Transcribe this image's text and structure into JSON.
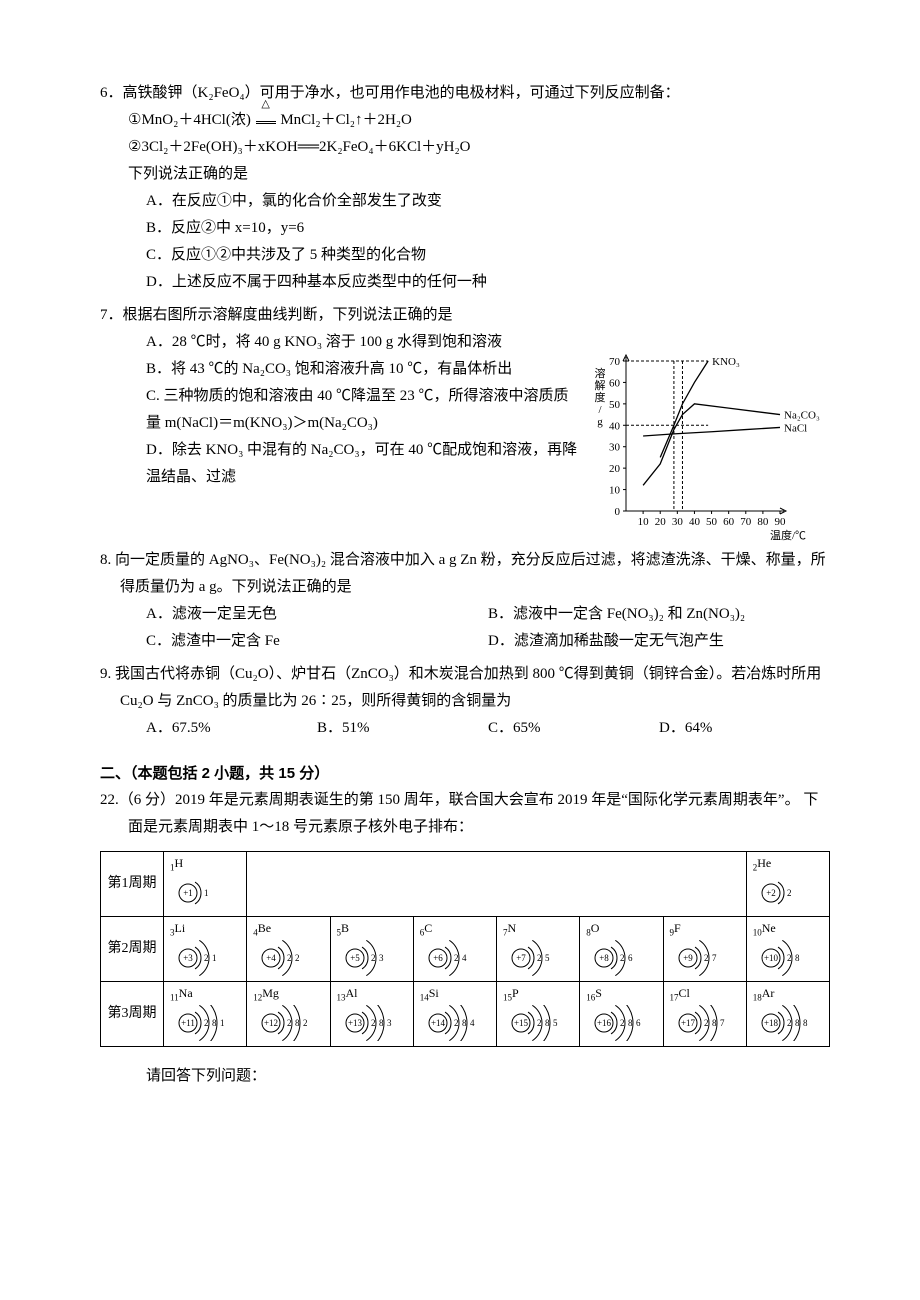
{
  "q6": {
    "stem": "6．高铁酸钾（K₂FeO₄）可用于净水，也可用作电池的电极材料，可通过下列反应制备：",
    "eq1_lhs": "①MnO₂＋4HCl(浓)",
    "eq1_rhs": "MnCl₂＋Cl₂↑＋2H₂O",
    "eq2": "②3Cl₂＋2Fe(OH)₃＋xKOH══2K₂FeO₄＋6KCl＋yH₂O",
    "prompt": "下列说法正确的是",
    "A": "A．在反应①中，氯的化合价全部发生了改变",
    "B": "B．反应②中 x=10，y=6",
    "C": "C．反应①②中共涉及了 5 种类型的化合物",
    "D": "D．上述反应不属于四种基本反应类型中的任何一种"
  },
  "q7": {
    "stem": "7．根据右图所示溶解度曲线判断，下列说法正确的是",
    "A": "A．28 ℃时，将 40 g KNO₃ 溶于 100 g 水得到饱和溶液",
    "B": "B．将 43 ℃的 Na₂CO₃ 饱和溶液升高 10 ℃，有晶体析出",
    "C": "C. 三种物质的饱和溶液由 40 ℃降温至 23 ℃，所得溶液中溶质质量 m(NaCl)＝m(KNO₃)＞m(Na₂CO₃)",
    "D": "D．除去 KNO₃ 中混有的 Na₂CO₃，可在 40 ℃配成饱和溶液，再降温结晶、过滤"
  },
  "chart": {
    "x_label": "温度/℃",
    "y_label": "溶解度/g",
    "x_ticks": [
      10,
      20,
      30,
      40,
      50,
      60,
      70,
      80,
      90
    ],
    "y_ticks": [
      0,
      10,
      20,
      30,
      40,
      50,
      60,
      70
    ],
    "series": [
      {
        "name": "KNO3",
        "label": "KNO₃",
        "points": [
          [
            20,
            25
          ],
          [
            28,
            40
          ],
          [
            33,
            50
          ],
          [
            40,
            60
          ],
          [
            48,
            70
          ]
        ]
      },
      {
        "name": "Na2CO3",
        "label": "Na₂CO₃",
        "points": [
          [
            10,
            12
          ],
          [
            20,
            22
          ],
          [
            28,
            38
          ],
          [
            33,
            45
          ],
          [
            40,
            50
          ],
          [
            60,
            48
          ],
          [
            80,
            46
          ],
          [
            90,
            45
          ]
        ]
      },
      {
        "name": "NaCl",
        "label": "NaCl",
        "points": [
          [
            10,
            35
          ],
          [
            28,
            36
          ],
          [
            50,
            37
          ],
          [
            70,
            38
          ],
          [
            90,
            39
          ]
        ]
      }
    ],
    "dashed_verticals": [
      28,
      33
    ],
    "dashed_horizontals": [
      40,
      70
    ],
    "line_color": "#000",
    "bg": "#fff"
  },
  "q8": {
    "stem": "8. 向一定质量的 AgNO₃、Fe(NO₃)₂ 混合溶液中加入 a g Zn 粉，充分反应后过滤，将滤渣洗涤、干燥、称量，所得质量仍为 a g。下列说法正确的是",
    "A": "A．滤液一定呈无色",
    "B": "B．滤液中一定含 Fe(NO₃)₂ 和 Zn(NO₃)₂",
    "C": "C．滤渣中一定含 Fe",
    "D": "D．滤渣滴加稀盐酸一定无气泡产生"
  },
  "q9": {
    "stem": "9. 我国古代将赤铜（Cu₂O）、炉甘石（ZnCO₃）和木炭混合加热到 800 ℃得到黄铜（铜锌合金）。若冶炼时所用 Cu₂O 与 ZnCO₃ 的质量比为 26∶25，则所得黄铜的含铜量为",
    "A": "A．67.5%",
    "B": "B．51%",
    "C": "C．65%",
    "D": "D．64%"
  },
  "section2": "二、（本题包括 2 小题，共 15 分）",
  "q22": {
    "stem": "22.（6 分）2019 年是元素周期表诞生的第 150 周年，联合国大会宣布 2019 年是“国际化学元素周期表年”。 下面是元素周期表中 1～18 号元素原子核外电子排布：",
    "after": "请回答下列问题："
  },
  "periodic": {
    "rows": [
      {
        "label": "第1周期",
        "cells": [
          {
            "z": 1,
            "sym": "H",
            "shells": [
              1
            ]
          },
          null,
          null,
          null,
          null,
          null,
          null,
          {
            "z": 2,
            "sym": "He",
            "shells": [
              2
            ]
          }
        ]
      },
      {
        "label": "第2周期",
        "cells": [
          {
            "z": 3,
            "sym": "Li",
            "shells": [
              2,
              1
            ]
          },
          {
            "z": 4,
            "sym": "Be",
            "shells": [
              2,
              2
            ]
          },
          {
            "z": 5,
            "sym": "B",
            "shells": [
              2,
              3
            ]
          },
          {
            "z": 6,
            "sym": "C",
            "shells": [
              2,
              4
            ]
          },
          {
            "z": 7,
            "sym": "N",
            "shells": [
              2,
              5
            ]
          },
          {
            "z": 8,
            "sym": "O",
            "shells": [
              2,
              6
            ]
          },
          {
            "z": 9,
            "sym": "F",
            "shells": [
              2,
              7
            ]
          },
          {
            "z": 10,
            "sym": "Ne",
            "shells": [
              2,
              8
            ]
          }
        ]
      },
      {
        "label": "第3周期",
        "cells": [
          {
            "z": 11,
            "sym": "Na",
            "shells": [
              2,
              8,
              1
            ]
          },
          {
            "z": 12,
            "sym": "Mg",
            "shells": [
              2,
              8,
              2
            ]
          },
          {
            "z": 13,
            "sym": "Al",
            "shells": [
              2,
              8,
              3
            ]
          },
          {
            "z": 14,
            "sym": "Si",
            "shells": [
              2,
              8,
              4
            ]
          },
          {
            "z": 15,
            "sym": "P",
            "shells": [
              2,
              8,
              5
            ]
          },
          {
            "z": 16,
            "sym": "S",
            "shells": [
              2,
              8,
              6
            ]
          },
          {
            "z": 17,
            "sym": "Cl",
            "shells": [
              2,
              8,
              7
            ]
          },
          {
            "z": 18,
            "sym": "Ar",
            "shells": [
              2,
              8,
              8
            ]
          }
        ]
      }
    ]
  }
}
